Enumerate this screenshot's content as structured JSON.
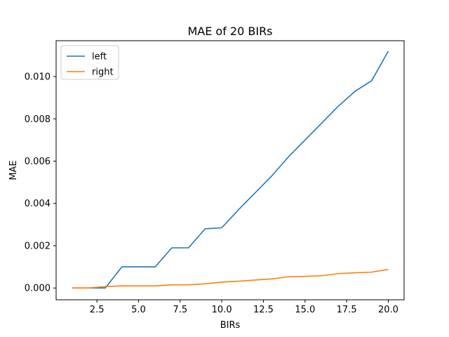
{
  "chart_data": {
    "type": "line",
    "title": "MAE of 20 BIRs",
    "xlabel": "BIRs",
    "ylabel": "MAE",
    "xlim": [
      0.05,
      20.95
    ],
    "ylim": [
      -0.000557,
      0.011694
    ],
    "xticks": [
      2.5,
      5.0,
      7.5,
      10.0,
      12.5,
      15.0,
      17.5,
      20.0
    ],
    "xtick_labels": [
      "2.5",
      "5.0",
      "7.5",
      "10.0",
      "12.5",
      "15.0",
      "17.5",
      "20.0"
    ],
    "yticks": [
      0,
      0.002,
      0.004,
      0.006,
      0.008,
      0.01
    ],
    "ytick_labels": [
      "0.000",
      "0.002",
      "0.004",
      "0.006",
      "0.008",
      "0.010"
    ],
    "grid": false,
    "legend_position": "top-left",
    "x": [
      1,
      2,
      3,
      4,
      5,
      6,
      7,
      8,
      9,
      10,
      11,
      12,
      13,
      14,
      15,
      16,
      17,
      18,
      19,
      20
    ],
    "series": [
      {
        "name": "left",
        "color": "#1f77b4",
        "values": [
          0.0,
          0.0,
          0.0,
          0.001,
          0.001,
          0.001,
          0.0019,
          0.0019,
          0.0028,
          0.00285,
          0.0037,
          0.0045,
          0.0053,
          0.0062,
          0.007,
          0.0078,
          0.0086,
          0.0093,
          0.0098,
          0.0112
        ]
      },
      {
        "name": "right",
        "color": "#ff7f0e",
        "values": [
          0.0,
          0.0,
          7e-05,
          0.0001,
          0.0001,
          0.0001,
          0.00015,
          0.00015,
          0.0002,
          0.00028,
          0.00032,
          0.00038,
          0.00043,
          0.00053,
          0.00055,
          0.00058,
          0.00068,
          0.00072,
          0.00075,
          0.00088
        ]
      }
    ]
  }
}
